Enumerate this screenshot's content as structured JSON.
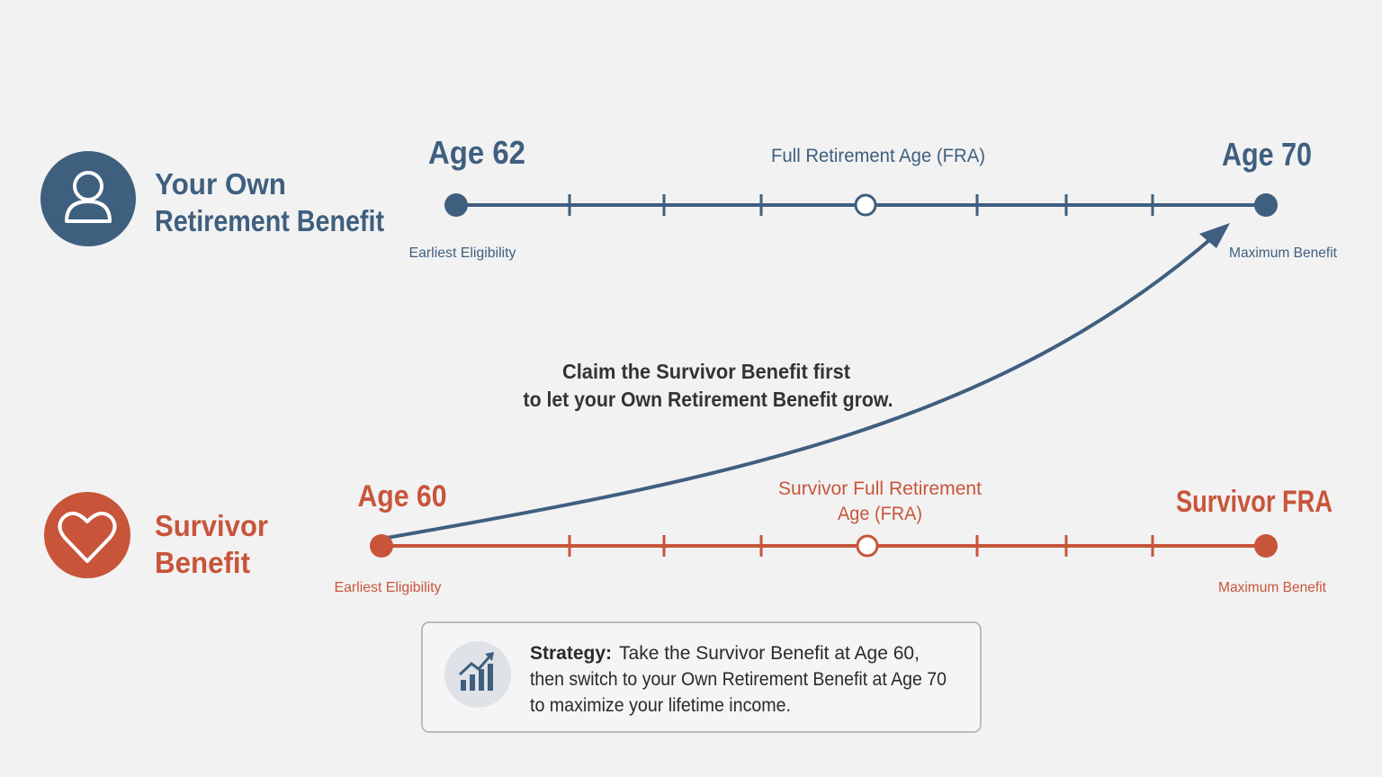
{
  "timelines": [
    {
      "title_lines": [
        "Your Own",
        "Retirement Benefit"
      ],
      "start": {
        "label": "Age 62",
        "caption": "Earliest Eligibility"
      },
      "middle": {
        "label_lines": [
          "Full Retirement Age (FRA)"
        ]
      },
      "end": {
        "label": "Age 70",
        "caption": "Maximum Benefit"
      }
    },
    {
      "title_lines": [
        "Survivor",
        "Benefit"
      ],
      "start": {
        "label": "Age 60",
        "caption": "Earliest Eligibility"
      },
      "middle": {
        "label_lines": [
          "Survivor Full Retirement",
          "Age (FRA)"
        ]
      },
      "end": {
        "label": "Survivor FRA",
        "caption": "Maximum Benefit"
      }
    }
  ],
  "note_lines": [
    "Claim the Survivor Benefit first",
    "to let your Own Retirement Benefit grow."
  ],
  "strategy": {
    "label": "Strategy:",
    "lines": [
      "Take the Survivor Benefit at Age 60,",
      "then switch to your Own Retirement Benefit at Age 70",
      "to maximize your lifetime income."
    ]
  }
}
